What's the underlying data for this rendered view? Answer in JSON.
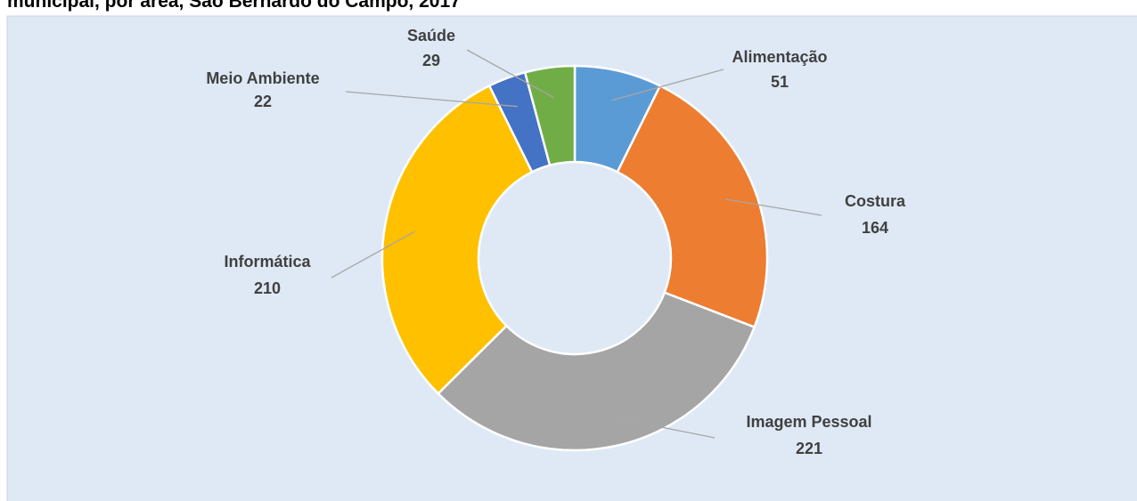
{
  "chart_data": {
    "type": "donut",
    "title": "municipal, por área, São Bernardo do Campo, 2017",
    "categories": [
      "Alimentação",
      "Costura",
      "Imagem Pessoal",
      "Informática",
      "Meio Ambiente",
      "Saúde"
    ],
    "values": [
      51,
      164,
      221,
      210,
      22,
      29
    ],
    "colors": [
      "#5b9bd5",
      "#ed7d31",
      "#a5a5a5",
      "#ffc000",
      "#4472c4",
      "#70ad47"
    ]
  }
}
